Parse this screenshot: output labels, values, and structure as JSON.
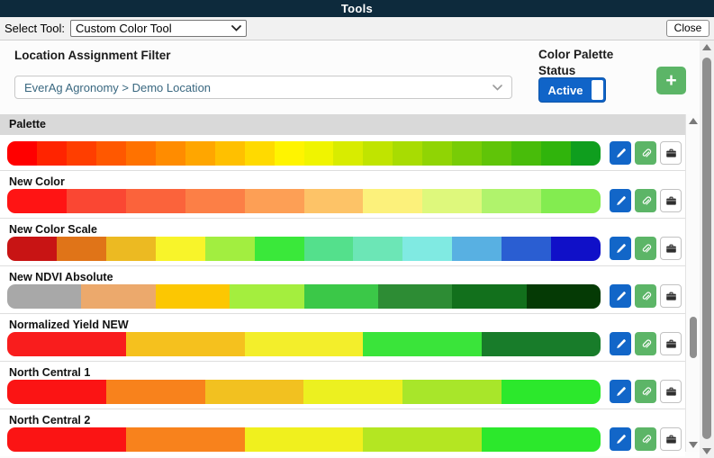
{
  "header": {
    "title": "Tools"
  },
  "toolbar": {
    "select_tool_label": "Select Tool:",
    "selected_tool": "Custom Color Tool",
    "close_label": "Close"
  },
  "filter": {
    "label": "Location Assignment Filter",
    "value": "EverAg Agronomy > Demo Location"
  },
  "status": {
    "line1": "Color Palette",
    "line2": "Status",
    "toggle_label": "Active",
    "toggle_state": "on"
  },
  "add_button": {
    "label": "+"
  },
  "icons": {
    "edit": "pencil-icon",
    "attach": "paperclip-icon",
    "archive": "archive-box-icon",
    "dropdown": "chevron-down-icon",
    "add": "plus-icon",
    "scroll_up": "triangle-up-icon",
    "scroll_down": "triangle-down-icon"
  },
  "colors": {
    "titlebar_bg": "#0d2a3c",
    "toolbar_bg": "#f1f1f1",
    "toggle_blue": "#1064c8",
    "action_blue": "#1266c8",
    "action_green": "#5cb567",
    "palette_header_bg": "#d9d9d9",
    "filter_text": "#3a6880"
  },
  "palettes": [
    {
      "name": "Palette",
      "header_style": "gray",
      "colors": [
        "#ff0000",
        "#ff2400",
        "#ff3e00",
        "#ff5800",
        "#ff7200",
        "#ff8c00",
        "#ffa600",
        "#ffc000",
        "#ffda00",
        "#fff400",
        "#f0f400",
        "#d8ec00",
        "#c0e400",
        "#a8dc02",
        "#90d404",
        "#78cc06",
        "#60c408",
        "#48bc0a",
        "#30b40c",
        "#0f9e1e"
      ]
    },
    {
      "name": "New Color",
      "header_style": "plain",
      "colors": [
        "#ff1414",
        "#fa4733",
        "#fb633b",
        "#fc7f46",
        "#fd9f55",
        "#fdc367",
        "#fcf17b",
        "#def87c",
        "#b0f36c",
        "#83ec50"
      ]
    },
    {
      "name": "New Color Scale",
      "header_style": "plain",
      "colors": [
        "#c81414",
        "#e07418",
        "#ecba22",
        "#f8f42a",
        "#a2ee40",
        "#3ae83a",
        "#54e08c",
        "#6ce6b6",
        "#80eae2",
        "#58b0e2",
        "#2a5ed2",
        "#1010c8"
      ]
    },
    {
      "name": "New NDVI Absolute",
      "header_style": "plain",
      "colors": [
        "#a8a8a8",
        "#eca96c",
        "#fcc702",
        "#a4ee3e",
        "#3bc848",
        "#2d8c34",
        "#12701c",
        "#053a05"
      ]
    },
    {
      "name": "Normalized Yield NEW",
      "header_style": "plain",
      "colors": [
        "#f91d1d",
        "#f5c11e",
        "#f3ee2b",
        "#3ae43a",
        "#187c2a"
      ]
    },
    {
      "name": "North Central 1",
      "header_style": "plain",
      "colors": [
        "#fb1414",
        "#f8821c",
        "#f2c120",
        "#ecf020",
        "#a8e62a",
        "#2ce82c"
      ]
    },
    {
      "name": "North Central 2",
      "header_style": "plain",
      "colors": [
        "#fb1414",
        "#f8821c",
        "#f0f01e",
        "#b4e622",
        "#2ce82c"
      ]
    }
  ]
}
